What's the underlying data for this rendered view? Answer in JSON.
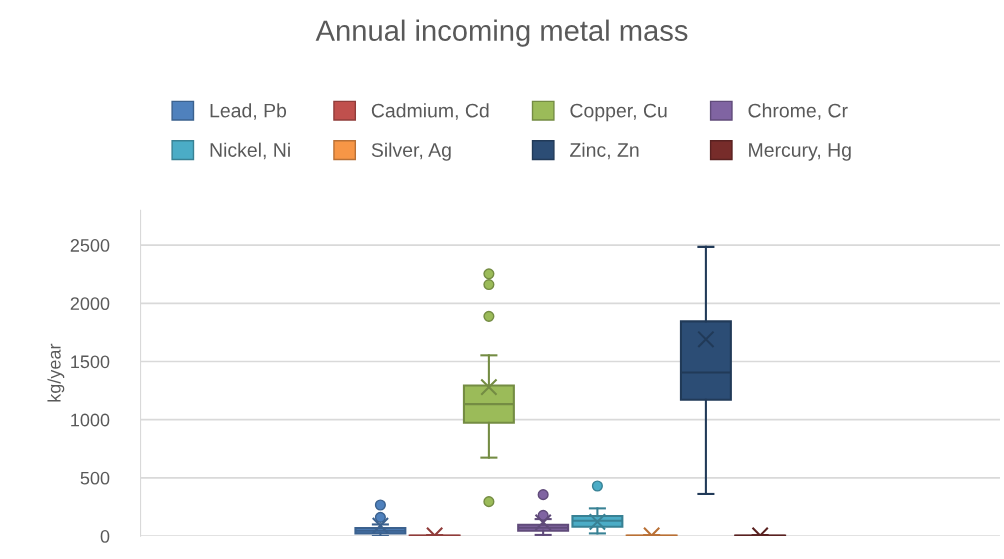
{
  "chart_data": {
    "type": "box",
    "title": "Annual incoming metal mass",
    "ylabel": "kg/year",
    "categories": [
      null
    ],
    "ylim": [
      0,
      2800
    ],
    "yticks": [
      0,
      500,
      1000,
      1500,
      2000,
      2500
    ],
    "grid": "y",
    "legend": "top",
    "series": [
      {
        "name": "Lead, Pb",
        "color": "#4f81bd",
        "boxes": [
          {
            "low": 0,
            "q1": 23,
            "median": 46,
            "q3": 69,
            "high": 100,
            "mean": 89,
            "outliers": [
              161,
              267
            ]
          }
        ]
      },
      {
        "name": "Cadmium, Cd",
        "color": "#c0504d",
        "boxes": [
          {
            "low": 0,
            "q1": 0,
            "median": 2,
            "q3": 4,
            "high": 8,
            "mean": 5
          }
        ]
      },
      {
        "name": "Copper, Cu",
        "color": "#9bbb59",
        "boxes": [
          {
            "low": 674,
            "q1": 973,
            "median": 1134,
            "q3": 1294,
            "high": 1553,
            "mean": 1280,
            "outliers": [
              296,
              1888,
              2161,
              2253
            ]
          }
        ]
      },
      {
        "name": "Chrome, Cr",
        "color": "#8064a2",
        "boxes": [
          {
            "low": 10,
            "q1": 46,
            "median": 72,
            "q3": 98,
            "high": 146,
            "mean": 118,
            "outliers": [
              178,
              356
            ]
          }
        ]
      },
      {
        "name": "Nickel, Ni",
        "color": "#4bacc6",
        "boxes": [
          {
            "low": 23,
            "q1": 80,
            "median": 132,
            "q3": 172,
            "high": 238,
            "mean": 123,
            "outliers": [
              430
            ]
          }
        ]
      },
      {
        "name": "Silver, Ag",
        "color": "#f79646",
        "boxes": [
          {
            "low": 0,
            "q1": 0,
            "median": 2,
            "q3": 4,
            "high": 8,
            "mean": 5
          }
        ]
      },
      {
        "name": "Zinc, Zn",
        "color": "#2c4d75",
        "boxes": [
          {
            "low": 362,
            "q1": 1171,
            "median": 1406,
            "q3": 1845,
            "high": 2485,
            "mean": 1691
          }
        ]
      },
      {
        "name": "Mercury, Hg",
        "color": "#772c2a",
        "boxes": [
          {
            "low": 0,
            "q1": 0,
            "median": 2,
            "q3": 4,
            "high": 8,
            "mean": 5
          }
        ]
      }
    ]
  }
}
